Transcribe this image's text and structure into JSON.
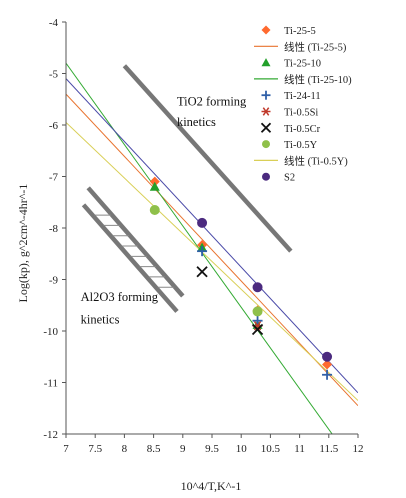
{
  "chart_data": {
    "type": "scatter",
    "xlabel": "10^4/T,K^-1",
    "ylabel": "Log(kp), g^2cm^-4hr^-1",
    "xlim": [
      7,
      12
    ],
    "ylim": [
      -12,
      -4
    ],
    "x_ticks": [
      "7",
      "7.5",
      "8",
      "8.5",
      "9",
      "9.5",
      "10",
      "10.5",
      "11",
      "11.5",
      "12"
    ],
    "y_ticks": [
      "-4",
      "-5",
      "-6",
      "-7",
      "-8",
      "-9",
      "-10",
      "-11",
      "-12"
    ],
    "grid": false,
    "legend_position": "top-right",
    "series": [
      {
        "name": "Ti-25-5",
        "marker": "diamond",
        "color": "#ff6a2e",
        "points": [
          [
            8.52,
            -7.1
          ],
          [
            9.33,
            -8.33
          ],
          [
            10.28,
            -9.6
          ],
          [
            11.47,
            -10.65
          ]
        ]
      },
      {
        "name": "线性 (Ti-25-5)",
        "marker": "line",
        "color": "#e8732f",
        "line": [
          [
            7,
            -5.4
          ],
          [
            12,
            -11.45
          ]
        ]
      },
      {
        "name": "Ti-25-10",
        "marker": "triangle",
        "color": "#22a02a",
        "points": [
          [
            8.52,
            -7.2
          ],
          [
            9.33,
            -8.38
          ],
          [
            10.28,
            -9.88
          ]
        ]
      },
      {
        "name": "线性 (Ti-25-10)",
        "marker": "line",
        "color": "#33aa33",
        "line": [
          [
            7,
            -4.8
          ],
          [
            12,
            -12.7
          ]
        ]
      },
      {
        "name": "Ti-24-11",
        "marker": "plus",
        "color": "#2f5fa8",
        "points": [
          [
            9.33,
            -8.45
          ],
          [
            10.28,
            -9.8
          ],
          [
            11.47,
            -10.85
          ]
        ]
      },
      {
        "name": "Ti-0.5Si",
        "marker": "asterisk",
        "color": "#c0392b",
        "points": [
          [
            10.28,
            -9.9
          ]
        ]
      },
      {
        "name": "Ti-0.5Cr",
        "marker": "x",
        "color": "#111111",
        "points": [
          [
            9.33,
            -8.85
          ],
          [
            10.28,
            -9.97
          ]
        ]
      },
      {
        "name": "Ti-0.5Y",
        "marker": "circle",
        "color": "#8fc04a",
        "points": [
          [
            8.52,
            -7.65
          ],
          [
            10.28,
            -9.62
          ]
        ]
      },
      {
        "name": "线性 (Ti-0.5Y)",
        "marker": "line",
        "color": "#d9cf57",
        "line": [
          [
            7,
            -5.95
          ],
          [
            12,
            -11.35
          ]
        ]
      },
      {
        "name": "S2",
        "marker": "circle",
        "color": "#4b2a7f",
        "points": [
          [
            9.33,
            -7.9
          ],
          [
            10.28,
            -9.15
          ],
          [
            11.47,
            -10.5
          ]
        ]
      },
      {
        "name": "",
        "marker": "line",
        "color": "#4a4aa8",
        "line": [
          [
            7,
            -5.1
          ],
          [
            12,
            -11.2
          ]
        ]
      }
    ],
    "annotations": [
      {
        "text": "TiO2 forming",
        "x": 8.9,
        "y": -5.62
      },
      {
        "text": "kinetics",
        "x": 8.9,
        "y": -6.02
      },
      {
        "text": "Al2O3 forming",
        "x": 7.25,
        "y": -9.42
      },
      {
        "text": "kinetics",
        "x": 7.25,
        "y": -9.85
      }
    ],
    "bands": [
      {
        "color": "#777777",
        "line": [
          [
            8.0,
            -4.85
          ],
          [
            10.85,
            -8.45
          ]
        ]
      },
      {
        "color": "#777777",
        "line": [
          [
            7.38,
            -7.22
          ],
          [
            9.0,
            -9.32
          ]
        ]
      },
      {
        "color": "#777777",
        "line": [
          [
            7.3,
            -7.55
          ],
          [
            8.9,
            -9.62
          ]
        ]
      }
    ],
    "hatch_color": "#888888"
  }
}
